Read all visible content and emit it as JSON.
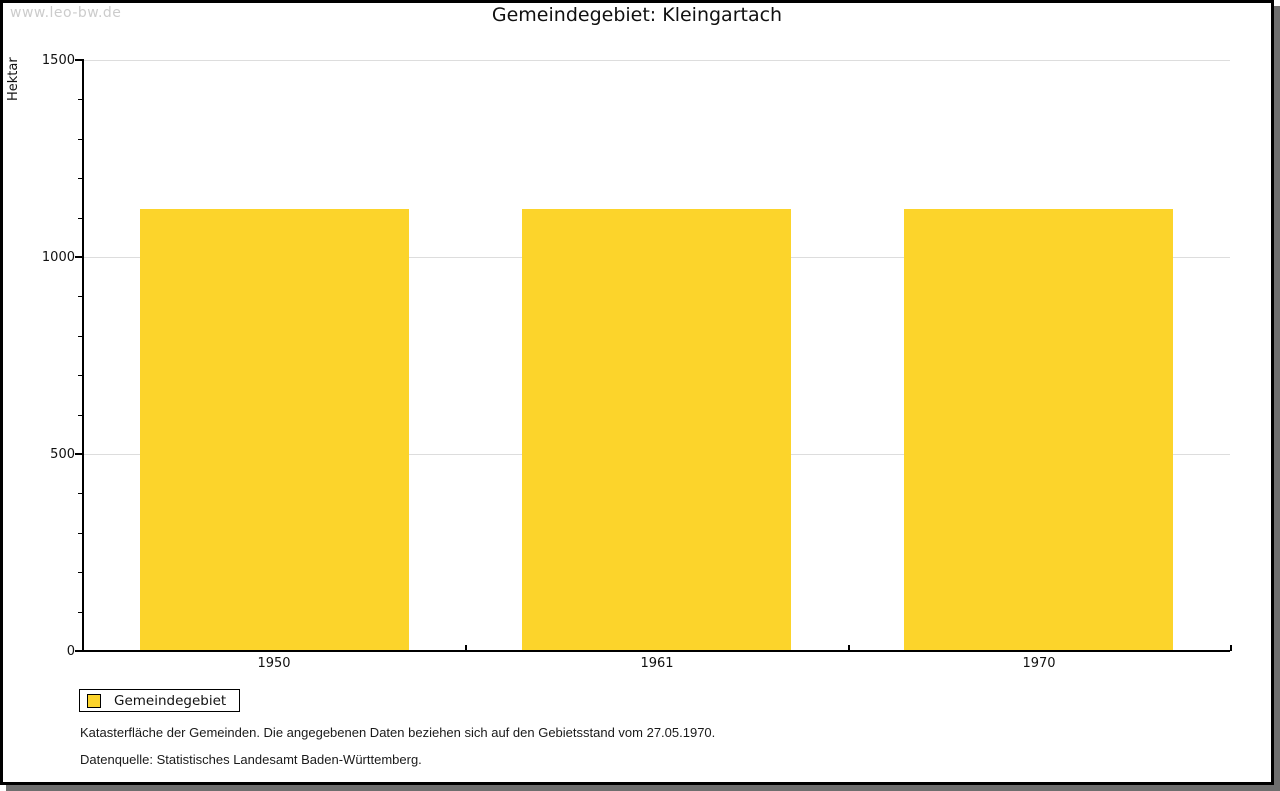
{
  "watermark": "www.leo-bw.de",
  "title": "Gemeindegebiet: Kleingartach",
  "chart_data": {
    "type": "bar",
    "title": "Gemeindegebiet: Kleingartach",
    "categories": [
      "1950",
      "1961",
      "1970"
    ],
    "series": [
      {
        "name": "Gemeindegebiet",
        "color": "#FCD42B",
        "values": [
          1122,
          1122,
          1122
        ]
      }
    ],
    "xlabel": "",
    "ylabel": "Hektar",
    "ylim": [
      0,
      1500
    ],
    "ytick_major_step": 500,
    "ytick_minor_step": 100,
    "ytick_labels": [
      "0",
      "500",
      "1000",
      "1500"
    ],
    "grid": "horizontal-major",
    "legend_position": "bottom-left-outside",
    "bar_color": "#FCD42B"
  },
  "legend": {
    "items": [
      {
        "label": "Gemeindegebiet",
        "color": "#FCD42B"
      }
    ]
  },
  "footnotes": [
    "Katasterfläche der Gemeinden. Die angegebenen Daten beziehen sich auf den Gebietsstand vom 27.05.1970.",
    "Datenquelle: Statistisches Landesamt Baden-Württemberg."
  ],
  "colors": {
    "bar": "#FCD42B",
    "grid": "#DDDDDD",
    "axis": "#000000",
    "shadow": "#6E6E6E",
    "watermark": "#CCCCCC",
    "text": "#111111"
  }
}
